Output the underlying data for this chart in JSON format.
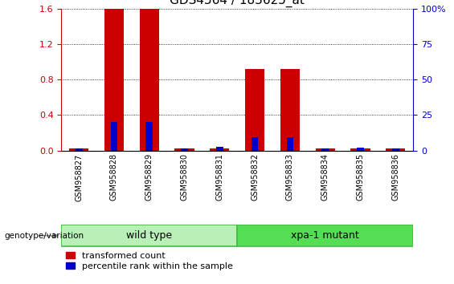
{
  "title": "GDS4564 / 183625_at",
  "samples": [
    "GSM958827",
    "GSM958828",
    "GSM958829",
    "GSM958830",
    "GSM958831",
    "GSM958832",
    "GSM958833",
    "GSM958834",
    "GSM958835",
    "GSM958836"
  ],
  "transformed_count": [
    0.02,
    1.6,
    1.6,
    0.02,
    0.02,
    0.92,
    0.92,
    0.02,
    0.02,
    0.02
  ],
  "percentile_rank": [
    0.02,
    0.32,
    0.32,
    0.02,
    0.04,
    0.15,
    0.15,
    0.02,
    0.03,
    0.02
  ],
  "groups": [
    {
      "label": "wild type",
      "start": 0,
      "end": 4,
      "color": "#b8f0b8",
      "edge": "#44bb44"
    },
    {
      "label": "xpa-1 mutant",
      "start": 5,
      "end": 9,
      "color": "#55dd55",
      "edge": "#44bb44"
    }
  ],
  "ylim_left": [
    0,
    1.6
  ],
  "ylim_right": [
    0,
    100
  ],
  "yticks_left": [
    0,
    0.4,
    0.8,
    1.2,
    1.6
  ],
  "yticks_right": [
    0,
    25,
    50,
    75,
    100
  ],
  "bar_color_red": "#cc0000",
  "bar_color_blue": "#0000cc",
  "bar_width": 0.55,
  "blue_bar_width": 0.2,
  "background_color": "#ffffff",
  "plot_bg_color": "#ffffff",
  "title_fontsize": 11,
  "tick_fontsize": 8,
  "legend_fontsize": 8,
  "group_label_fontsize": 9,
  "left_axis_color": "#cc0000",
  "right_axis_color": "#0000cc",
  "label_bg_color": "#c8c8c8",
  "genotype_label": "genotype/variation",
  "legend_items": [
    {
      "color": "#cc0000",
      "label": "transformed count"
    },
    {
      "color": "#0000cc",
      "label": "percentile rank within the sample"
    }
  ]
}
